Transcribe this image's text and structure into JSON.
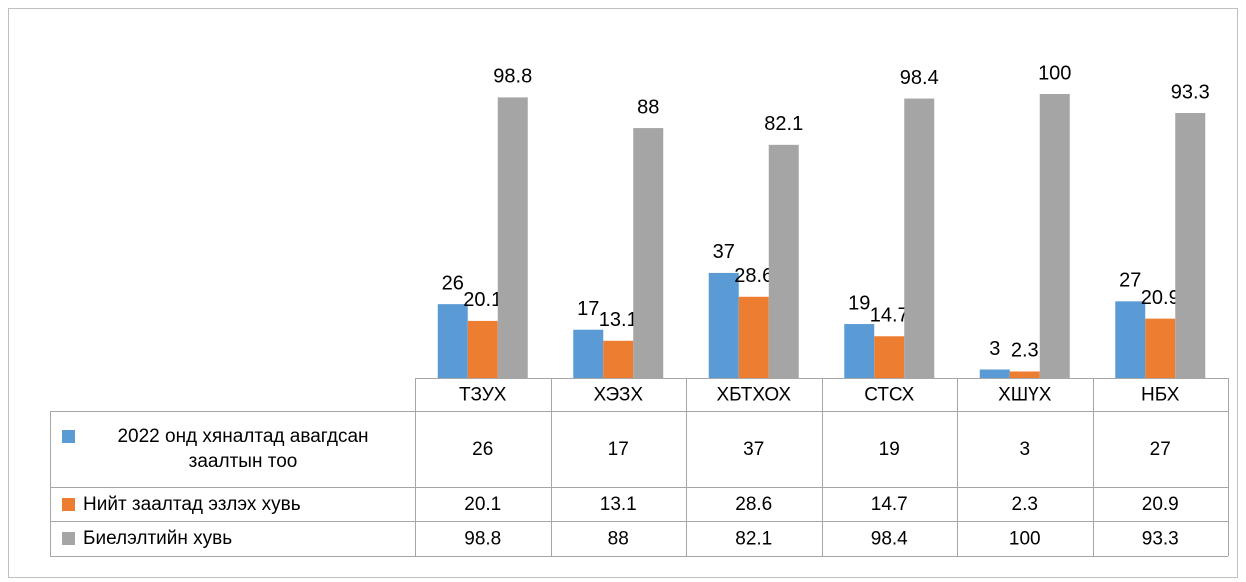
{
  "chart_data": {
    "type": "bar",
    "categories": [
      "ТЗУХ",
      "ХЭЗХ",
      "ХБТХОХ",
      "СТСХ",
      "ХШҮХ",
      "НБХ"
    ],
    "series": [
      {
        "name": "2022 онд хяналтад авагдсан заалтын тоо",
        "color": "#5b9bd5",
        "values": [
          26,
          17,
          37,
          19,
          3,
          27
        ]
      },
      {
        "name": "Нийт заалтад эзлэх хувь",
        "color": "#ed7d31",
        "values": [
          20.1,
          13.1,
          28.6,
          14.7,
          2.3,
          20.9
        ]
      },
      {
        "name": "Биелэлтийн хувь",
        "color": "#a5a5a5",
        "values": [
          98.8,
          88,
          82.1,
          98.4,
          100,
          93.3
        ]
      }
    ],
    "ylim": [
      0,
      100
    ]
  }
}
